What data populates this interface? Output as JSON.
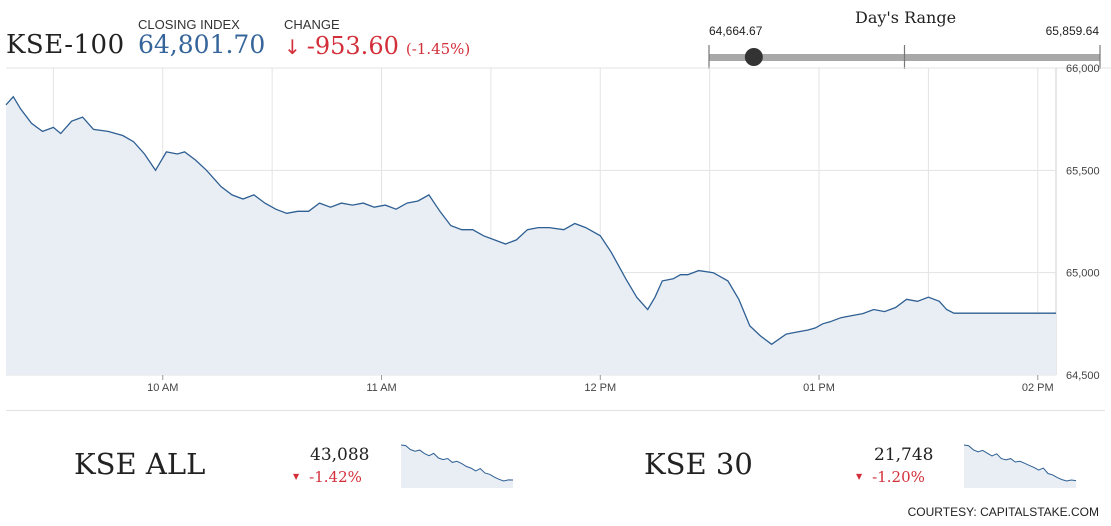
{
  "header": {
    "index_name": "KSE-100",
    "closing_label": "CLOSING INDEX",
    "closing_value": "64,801.70",
    "change_label": "CHANGE",
    "change_arrow": "↓",
    "change_value": "-953.60",
    "change_pct": "(-1.45%)"
  },
  "days_range": {
    "title": "Day's Range",
    "low": "64,664.67",
    "high": "65,859.64",
    "current": 64801.7
  },
  "colors": {
    "accent_blue": "#35659a",
    "negative_red": "#d32f3a",
    "line": "#2e5f93",
    "area_fill": "#e8eef4",
    "grid": "#e3e3e3",
    "range_track": "#a8a8a8"
  },
  "chart_data": [
    {
      "type": "area",
      "ylim": [
        64500,
        66000
      ],
      "yticks": [
        64500,
        65000,
        65500,
        66000
      ],
      "ytick_labels": [
        "64,500",
        "65,000",
        "65,500",
        "66,000"
      ],
      "xlim": [
        "09:17",
        "14:05"
      ],
      "xticks": [
        "10:00",
        "11:00",
        "12:00",
        "13:00",
        "14:00"
      ],
      "xtick_labels": [
        "10 AM",
        "11 AM",
        "12 PM",
        "01 PM",
        "02 PM"
      ],
      "grid": true,
      "x": [
        "09:17",
        "09:19",
        "09:21",
        "09:24",
        "09:27",
        "09:30",
        "09:32",
        "09:35",
        "09:38",
        "09:41",
        "09:45",
        "09:49",
        "09:52",
        "09:55",
        "09:58",
        "10:01",
        "10:04",
        "10:06",
        "10:09",
        "10:12",
        "10:16",
        "10:19",
        "10:22",
        "10:25",
        "10:28",
        "10:31",
        "10:34",
        "10:37",
        "10:40",
        "10:43",
        "10:46",
        "10:49",
        "10:52",
        "10:55",
        "10:58",
        "11:01",
        "11:04",
        "11:07",
        "11:10",
        "11:13",
        "11:16",
        "11:19",
        "11:22",
        "11:25",
        "11:28",
        "11:31",
        "11:34",
        "11:37",
        "11:40",
        "11:43",
        "11:46",
        "11:50",
        "11:53",
        "11:56",
        "12:00",
        "12:03",
        "12:07",
        "12:10",
        "12:13",
        "12:15",
        "12:17",
        "12:20",
        "12:22",
        "12:24",
        "12:27",
        "12:31",
        "12:35",
        "12:38",
        "12:41",
        "12:44",
        "12:47",
        "12:51",
        "12:54",
        "12:57",
        "12:59",
        "13:01",
        "13:03",
        "13:06",
        "13:09",
        "13:12",
        "13:15",
        "13:18",
        "13:21",
        "13:24",
        "13:27",
        "13:30",
        "13:33",
        "13:35",
        "13:37",
        "13:39",
        "14:05"
      ],
      "series": [
        {
          "values": [
            65820,
            65860,
            65800,
            65730,
            65690,
            65710,
            65680,
            65740,
            65760,
            65700,
            65690,
            65670,
            65640,
            65580,
            65500,
            65590,
            65580,
            65590,
            65550,
            65500,
            65420,
            65380,
            65360,
            65380,
            65340,
            65310,
            65290,
            65300,
            65300,
            65340,
            65320,
            65340,
            65330,
            65340,
            65320,
            65330,
            65310,
            65340,
            65350,
            65380,
            65300,
            65230,
            65210,
            65210,
            65180,
            65160,
            65140,
            65160,
            65210,
            65220,
            65220,
            65210,
            65240,
            65220,
            65180,
            65100,
            64970,
            64880,
            64820,
            64880,
            64960,
            64970,
            64990,
            64990,
            65010,
            65000,
            64960,
            64870,
            64740,
            64690,
            64650,
            64700,
            64710,
            64720,
            64730,
            64750,
            64760,
            64780,
            64790,
            64800,
            64820,
            64810,
            64830,
            64870,
            64860,
            64880,
            64860,
            64820,
            64802,
            64802,
            64802
          ]
        }
      ]
    }
  ],
  "mini_indices": [
    {
      "name": "KSE ALL",
      "value": "43,088",
      "change_arrow": "▼",
      "change_pct": "-1.42%",
      "sparkline": [
        43710,
        43700,
        43630,
        43600,
        43620,
        43560,
        43520,
        43560,
        43480,
        43450,
        43470,
        43400,
        43420,
        43380,
        43330,
        43300,
        43250,
        43290,
        43210,
        43190,
        43140,
        43100,
        43070,
        43090,
        43088
      ]
    },
    {
      "name": "KSE 30",
      "value": "21,748",
      "change_arrow": "▼",
      "change_pct": "-1.20%",
      "sparkline": [
        22010,
        22005,
        21975,
        21960,
        21970,
        21950,
        21930,
        21945,
        21910,
        21900,
        21910,
        21885,
        21890,
        21875,
        21860,
        21845,
        21825,
        21840,
        21800,
        21790,
        21770,
        21755,
        21745,
        21752,
        21748
      ]
    }
  ],
  "footer": {
    "courtesy": "COURTESY: CAPITALSTAKE.COM"
  }
}
